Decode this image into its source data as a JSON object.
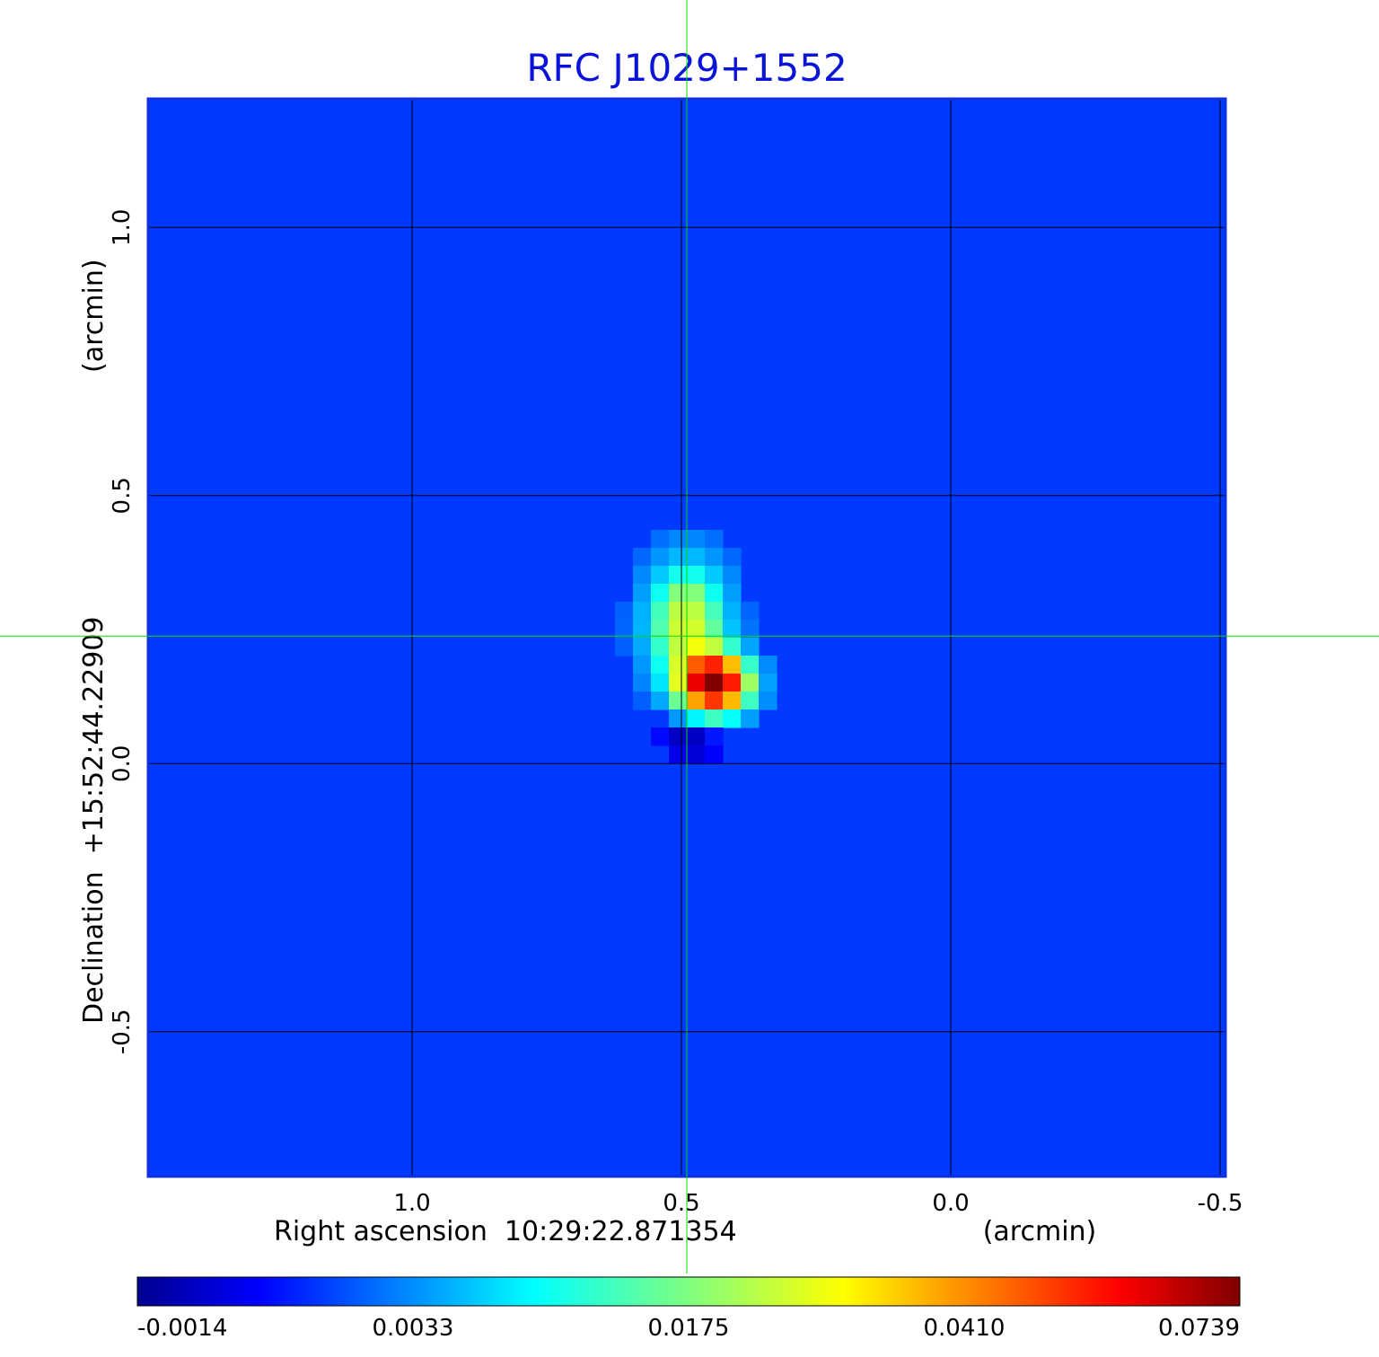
{
  "chart_data": {
    "type": "heatmap",
    "title": "RFC J1029+1552",
    "xlabel": "Right ascension  10:29:22.871354",
    "xunit": "(arcmin)",
    "ylabel": "Declination  +15:52:44.22909",
    "yunit": "(arcmin)",
    "x_ticks": [
      "1.0",
      "0.5",
      "0.0",
      "-0.5"
    ],
    "x_tick_values": [
      1.0,
      0.5,
      0.0,
      -0.5
    ],
    "y_ticks": [
      "1.0",
      "0.5",
      "0.0",
      "-0.5"
    ],
    "y_tick_values": [
      1.0,
      0.5,
      0.0,
      -0.5
    ],
    "xlim": [
      1.49,
      -0.51
    ],
    "ylim": [
      -0.77,
      1.24
    ],
    "grid": true,
    "crosshair": {
      "x": 0.49,
      "y": 0.238,
      "color": "#00dd00"
    },
    "colormap": "jet",
    "colorbar_ticks": [
      "-0.0014",
      "0.0033",
      "0.0175",
      "0.0410",
      "0.0739"
    ],
    "colorbar_tick_values": [
      -0.0014,
      0.0033,
      0.0175,
      0.041,
      0.0739
    ],
    "background_value": 0.002,
    "components": [
      {
        "x": 0.49,
        "y": 0.26,
        "peak": 0.026,
        "sx": 0.045,
        "sy": 0.07
      },
      {
        "x": 0.44,
        "y": 0.15,
        "peak": 0.0739,
        "sx": 0.04,
        "sy": 0.035
      },
      {
        "x": 0.48,
        "y": 0.05,
        "peak": -0.0014,
        "sx": 0.04,
        "sy": 0.03
      }
    ]
  }
}
